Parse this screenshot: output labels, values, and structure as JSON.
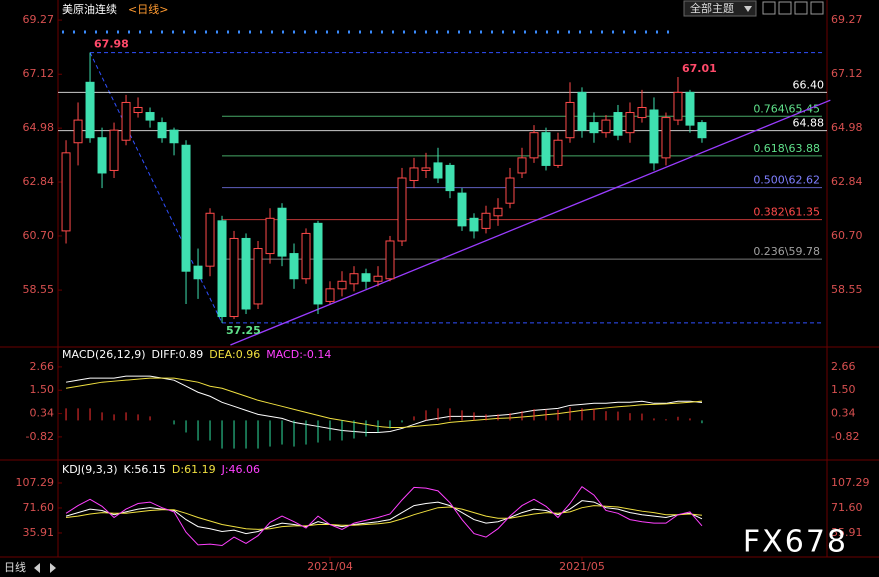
{
  "header": {
    "title": "美原油连续",
    "period": "<日线>",
    "menu": "全部主题"
  },
  "chart_data": [
    {
      "type": "candlestick",
      "ylim": [
        56.37,
        69.75
      ],
      "xlim": [
        -0.67,
        63.42
      ],
      "yticks": [
        69.27,
        67.12,
        64.98,
        62.84,
        {
          "value": 60.7,
          "label": "60.70"
        },
        58.55
      ],
      "xticks": [
        {
          "value": 22,
          "label": "2021/04"
        },
        {
          "value": 43,
          "label": "2021/05"
        }
      ],
      "up_color": "#ff4a4a",
      "down_color": "#3fe0b0",
      "categories": [
        null,
        null,
        null,
        null,
        null,
        null,
        null,
        null,
        null,
        null,
        null,
        null,
        null,
        null,
        null,
        null,
        null,
        null,
        null,
        null,
        null,
        null,
        null,
        null,
        null,
        null,
        null,
        null,
        null,
        null,
        null,
        null,
        null,
        null,
        null,
        null,
        null,
        null,
        null,
        null,
        null,
        null,
        null,
        null,
        null,
        null,
        null,
        null,
        null,
        null,
        null,
        null,
        null,
        null
      ],
      "open": [
        60.9,
        64.4,
        66.8,
        64.6,
        63.3,
        64.5,
        65.6,
        65.6,
        65.2,
        64.9,
        64.3,
        59.5,
        59.5,
        61.3,
        57.5,
        60.6,
        58.0,
        60.0,
        61.8,
        60.0,
        59.0,
        61.2,
        58.1,
        58.6,
        58.8,
        59.2,
        58.9,
        59.0,
        60.5,
        62.9,
        63.3,
        63.6,
        63.5,
        62.4,
        61.4,
        61.0,
        61.5,
        62.0,
        63.2,
        63.8,
        64.8,
        63.5,
        64.6,
        66.4,
        65.2,
        64.8,
        65.6,
        64.8,
        65.4,
        65.7,
        63.8,
        65.3,
        66.4,
        65.2
      ],
      "high": [
        64.5,
        66.0,
        67.98,
        65.0,
        65.2,
        66.3,
        66.2,
        65.8,
        65.4,
        65.0,
        64.5,
        60.2,
        61.8,
        61.5,
        60.9,
        60.8,
        60.5,
        61.8,
        62.0,
        60.4,
        61.0,
        61.3,
        58.9,
        59.3,
        59.5,
        59.4,
        59.5,
        60.7,
        63.4,
        63.8,
        64.0,
        64.2,
        63.6,
        62.6,
        61.6,
        61.9,
        62.2,
        63.4,
        64.2,
        65.1,
        65.0,
        64.8,
        66.8,
        66.6,
        65.6,
        65.5,
        65.9,
        66.0,
        66.5,
        66.2,
        65.6,
        67.01,
        66.5,
        65.3
      ],
      "low": [
        60.4,
        63.5,
        64.4,
        62.6,
        63.0,
        64.3,
        65.4,
        65.0,
        64.4,
        63.9,
        58.0,
        58.2,
        59.1,
        57.25,
        57.4,
        57.6,
        57.8,
        59.6,
        59.5,
        58.6,
        58.8,
        57.6,
        58.0,
        58.3,
        58.5,
        58.6,
        58.7,
        58.9,
        60.3,
        62.6,
        63.0,
        62.8,
        62.2,
        60.9,
        60.6,
        60.8,
        61.1,
        61.8,
        63.0,
        63.6,
        63.3,
        63.4,
        64.4,
        64.6,
        64.4,
        64.6,
        64.5,
        64.4,
        65.2,
        63.3,
        63.5,
        65.1,
        64.8,
        64.4
      ],
      "close": [
        64.0,
        65.3,
        64.6,
        63.2,
        64.9,
        66.0,
        65.8,
        65.3,
        64.6,
        64.4,
        59.3,
        59.0,
        61.6,
        57.5,
        60.6,
        57.8,
        60.2,
        61.4,
        59.9,
        59.0,
        60.8,
        58.0,
        58.6,
        58.9,
        59.2,
        58.9,
        59.1,
        60.5,
        63.0,
        63.4,
        63.4,
        63.0,
        62.5,
        61.1,
        60.9,
        61.6,
        61.8,
        63.0,
        63.8,
        64.8,
        63.5,
        64.5,
        66.0,
        64.9,
        64.8,
        65.3,
        64.7,
        65.6,
        65.8,
        63.6,
        65.4,
        66.4,
        65.1,
        64.6
      ],
      "annotations": [
        {
          "index": 2,
          "label": "67.98",
          "color": "#ff4a6a"
        },
        {
          "index": 13,
          "label": "57.25",
          "color": "#5fe08a"
        },
        {
          "index": 51,
          "label": "67.01",
          "color": "#ff4a6a"
        }
      ],
      "price_lines": [
        {
          "value": 66.4,
          "label": "66.40",
          "color": "#ffffff"
        },
        {
          "value": 64.88,
          "label": "64.88",
          "color": "#ffffff"
        }
      ],
      "fib_levels": [
        {
          "value": 65.45,
          "label": "0.764\\65.45",
          "color": "#5fe08a"
        },
        {
          "value": 63.88,
          "label": "0.618\\63.88",
          "color": "#5fe08a"
        },
        {
          "value": 62.62,
          "label": "0.500\\62.62",
          "color": "#7f7fff"
        },
        {
          "value": 61.35,
          "label": "0.382\\61.35",
          "color": "#ff4a4a"
        },
        {
          "value": 59.78,
          "label": "0.236\\59.78",
          "color": "#a0a0a0"
        }
      ],
      "trendline": {
        "points": [
          [
            13.7,
            56.37
          ],
          [
            63.7,
            66.09
          ]
        ],
        "color": "#9a3cff"
      }
    },
    {
      "type": "macd",
      "indicator": "MACD(26,12,9)",
      "ylim": [
        -1.72,
        3.6
      ],
      "xlim": [
        -0.67,
        63.42
      ],
      "yticks": [
        2.66,
        {
          "value": 1.5,
          "label": "1.50"
        },
        0.34,
        -0.82
      ],
      "series": [
        {
          "name": "DIFF:0.89",
          "color": "#ffffff",
          "values": [
            1.9,
            2.0,
            2.1,
            2.1,
            2.1,
            2.2,
            2.2,
            2.2,
            2.1,
            2.0,
            1.7,
            1.4,
            1.2,
            0.9,
            0.7,
            0.5,
            0.3,
            0.2,
            0.1,
            -0.1,
            -0.2,
            -0.3,
            -0.4,
            -0.5,
            -0.55,
            -0.6,
            -0.6,
            -0.55,
            -0.4,
            -0.2,
            0.0,
            0.1,
            0.2,
            0.2,
            0.2,
            0.2,
            0.25,
            0.3,
            0.4,
            0.5,
            0.55,
            0.6,
            0.75,
            0.8,
            0.85,
            0.85,
            0.9,
            0.9,
            0.95,
            0.85,
            0.85,
            0.95,
            0.95,
            0.89
          ]
        },
        {
          "name": "DEA:0.96",
          "color": "#f0e040",
          "values": [
            1.6,
            1.7,
            1.8,
            1.9,
            1.95,
            2.0,
            2.05,
            2.1,
            2.1,
            2.1,
            2.0,
            1.9,
            1.7,
            1.6,
            1.4,
            1.2,
            1.0,
            0.85,
            0.7,
            0.55,
            0.4,
            0.25,
            0.1,
            0.0,
            -0.1,
            -0.2,
            -0.3,
            -0.35,
            -0.35,
            -0.3,
            -0.25,
            -0.2,
            -0.1,
            -0.05,
            0.0,
            0.05,
            0.1,
            0.12,
            0.17,
            0.22,
            0.28,
            0.34,
            0.42,
            0.5,
            0.56,
            0.62,
            0.68,
            0.72,
            0.78,
            0.8,
            0.82,
            0.86,
            0.9,
            0.96
          ]
        },
        {
          "name": "MACD:-0.14",
          "color": "#ff40ff",
          "kind": "histogram",
          "up_color": "#ff3030",
          "down_color": "#30e0a0",
          "values": [
            0.6,
            0.6,
            0.6,
            0.4,
            0.3,
            0.4,
            0.3,
            0.2,
            0,
            -0.2,
            -0.6,
            -1.0,
            -1.0,
            -1.4,
            -1.4,
            -1.4,
            -1.4,
            -1.3,
            -1.2,
            -1.3,
            -1.2,
            -1.1,
            -1.0,
            -1.0,
            -0.9,
            -0.8,
            -0.6,
            -0.4,
            -0.1,
            0.2,
            0.5,
            0.6,
            0.6,
            0.5,
            0.4,
            0.3,
            0.3,
            0.36,
            0.46,
            0.56,
            0.54,
            0.52,
            0.66,
            0.6,
            0.58,
            0.46,
            0.44,
            0.36,
            0.34,
            0.1,
            0.06,
            0.18,
            0.1,
            -0.14
          ]
        }
      ]
    },
    {
      "type": "kdj",
      "indicator": "KDJ(9,3,3)",
      "ylim": [
        1.6,
        135.8
      ],
      "xlim": [
        -0.67,
        63.42
      ],
      "yticks": [
        107.29,
        {
          "value": 71.6,
          "label": "71.60"
        },
        35.91
      ],
      "series": [
        {
          "name": "K:56.15",
          "color": "#ffffff",
          "values": [
            60,
            65,
            70,
            68,
            62,
            66,
            70,
            72,
            70,
            68,
            55,
            45,
            42,
            38,
            40,
            35,
            38,
            45,
            50,
            48,
            45,
            52,
            48,
            45,
            48,
            50,
            52,
            55,
            65,
            75,
            78,
            80,
            75,
            65,
            55,
            50,
            52,
            58,
            65,
            70,
            68,
            62,
            70,
            82,
            80,
            72,
            70,
            65,
            62,
            60,
            58,
            62,
            64,
            56.15
          ]
        },
        {
          "name": "D:61.19",
          "color": "#f0e040",
          "values": [
            58,
            60,
            63,
            65,
            64,
            64,
            66,
            68,
            69,
            69,
            64,
            58,
            53,
            48,
            45,
            42,
            41,
            42,
            45,
            46,
            46,
            48,
            48,
            47,
            47,
            48,
            49,
            51,
            56,
            62,
            67,
            72,
            73,
            70,
            65,
            60,
            57,
            57,
            60,
            63,
            65,
            64,
            66,
            72,
            75,
            74,
            73,
            70,
            67,
            65,
            62,
            62,
            63,
            61.19
          ]
        },
        {
          "name": "J:46.06",
          "color": "#ff40ff",
          "values": [
            64,
            75,
            84,
            74,
            58,
            70,
            78,
            80,
            72,
            66,
            37,
            19,
            20,
            18,
            30,
            21,
            32,
            51,
            60,
            52,
            43,
            60,
            48,
            41,
            50,
            54,
            58,
            63,
            83,
            101,
            100,
            96,
            79,
            55,
            35,
            30,
            42,
            60,
            75,
            84,
            74,
            58,
            78,
            102,
            90,
            68,
            64,
            55,
            52,
            50,
            50,
            62,
            66,
            46.06
          ]
        }
      ]
    }
  ],
  "footer": {
    "period": "日线",
    "watermark": "FX678"
  }
}
